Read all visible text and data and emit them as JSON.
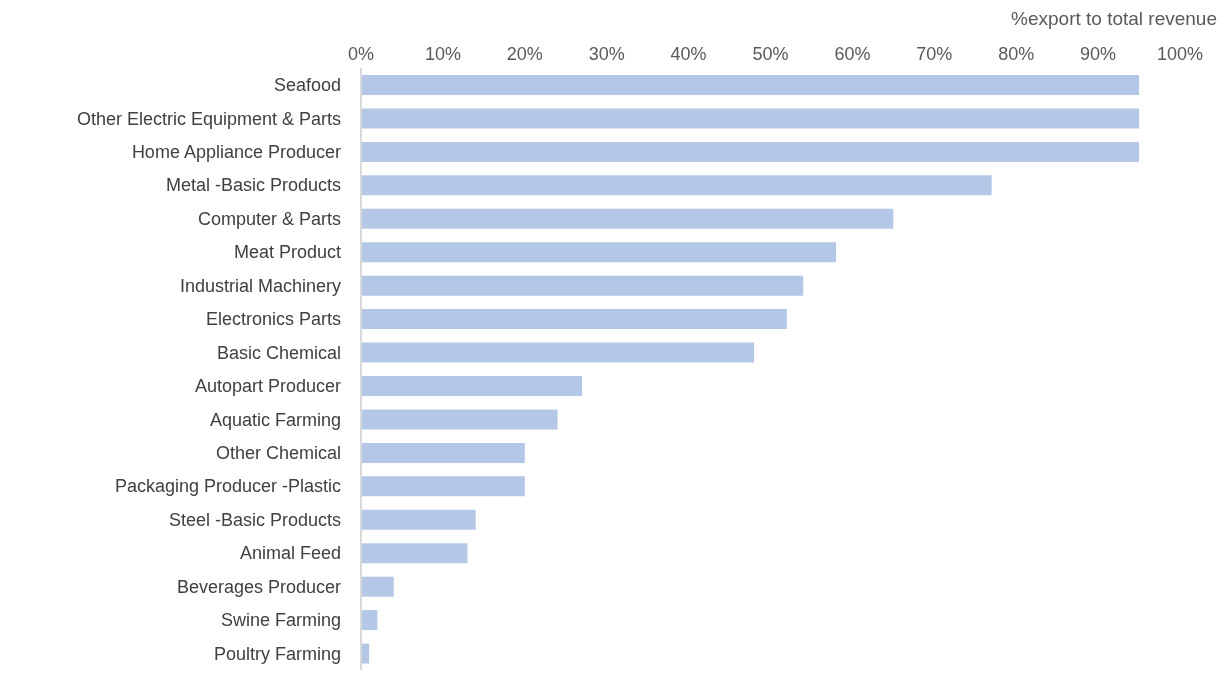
{
  "chart_data": {
    "type": "bar",
    "orientation": "horizontal",
    "xlabel": "%export to total revenue",
    "categories": [
      "Seafood",
      "Other Electric Equipment & Parts",
      "Home Appliance Producer",
      "Metal -Basic Products",
      "Computer & Parts",
      "Meat Product",
      "Industrial Machinery",
      "Electronics Parts",
      "Basic Chemical",
      "Autopart Producer",
      "Aquatic Farming",
      "Other Chemical",
      "Packaging Producer -Plastic",
      "Steel -Basic Products",
      "Animal Feed",
      "Beverages Producer",
      "Swine Farming",
      "Poultry Farming"
    ],
    "values": [
      95,
      95,
      95,
      77,
      65,
      58,
      54,
      52,
      48,
      27,
      24,
      20,
      20,
      14,
      13,
      4,
      2,
      1
    ],
    "color": "#b4c7e7",
    "xlim": [
      0,
      100
    ],
    "xticks": [
      {
        "value": 0,
        "label": "0%"
      },
      {
        "value": 10,
        "label": "10%"
      },
      {
        "value": 20,
        "label": "20%"
      },
      {
        "value": 30,
        "label": "30%"
      },
      {
        "value": 40,
        "label": "40%"
      },
      {
        "value": 50,
        "label": "50%"
      },
      {
        "value": 60,
        "label": "60%"
      },
      {
        "value": 70,
        "label": "70%"
      },
      {
        "value": 80,
        "label": "80%"
      },
      {
        "value": 90,
        "label": "90%"
      },
      {
        "value": 100,
        "label": "100%"
      }
    ],
    "grid": false
  }
}
